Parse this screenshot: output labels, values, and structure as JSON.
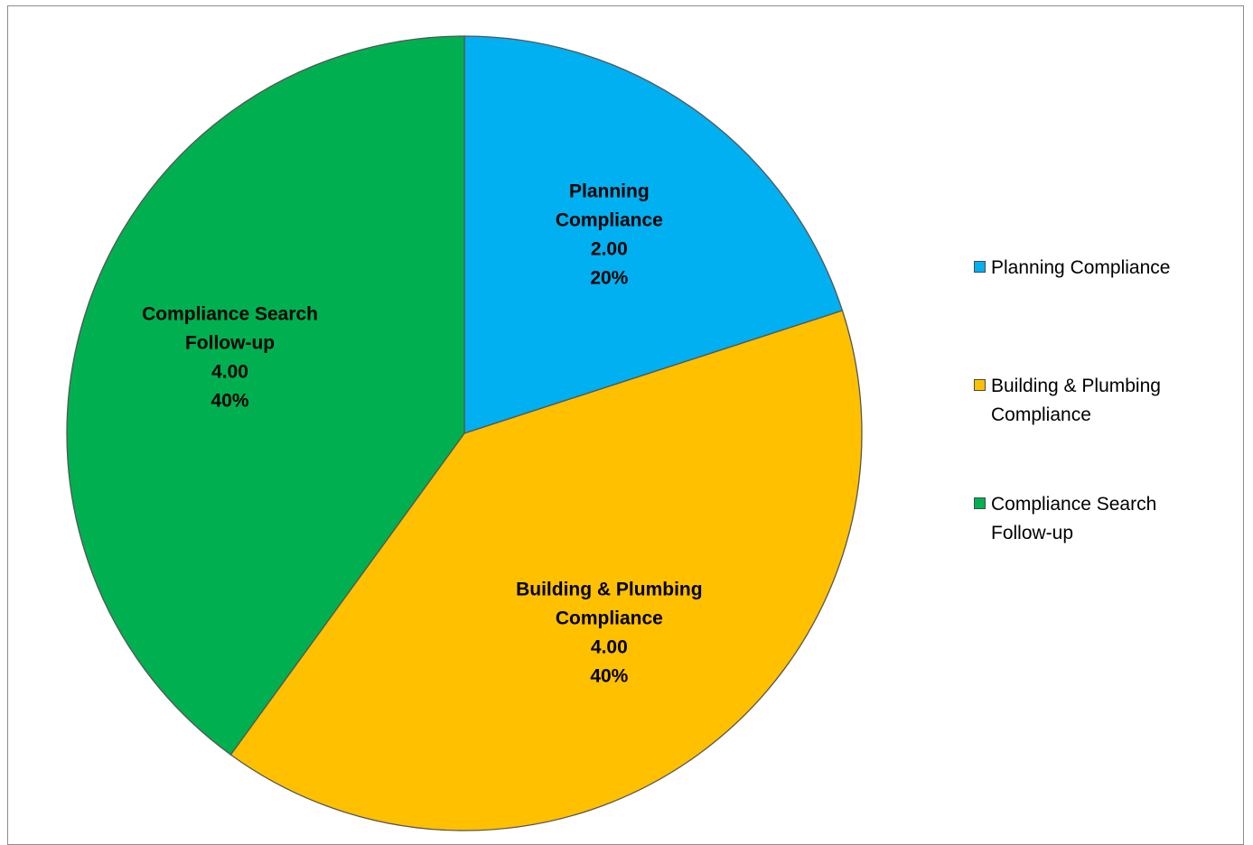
{
  "chart_data": {
    "type": "pie",
    "slices": [
      {
        "label_lines": [
          "Planning",
          "Compliance"
        ],
        "value": 2.0,
        "value_label": "2.00",
        "percent_label": "20%",
        "color": "#00B0F0"
      },
      {
        "label_lines": [
          "Building & Plumbing",
          "Compliance"
        ],
        "value": 4.0,
        "value_label": "4.00",
        "percent_label": "40%",
        "color": "#FFC000"
      },
      {
        "label_lines": [
          "Compliance Search",
          "Follow-up"
        ],
        "value": 4.0,
        "value_label": "4.00",
        "percent_label": "40%",
        "color": "#00B050"
      }
    ],
    "legend": {
      "position": "right",
      "entries": [
        {
          "label": "Planning Compliance",
          "color": "#00B0F0"
        },
        {
          "label": "Building & Plumbing Compliance",
          "color": "#FFC000"
        },
        {
          "label": "Compliance Search Follow-up",
          "color": "#00B050"
        }
      ]
    },
    "title": "",
    "start_angle_deg": 0,
    "direction": "clockwise"
  }
}
